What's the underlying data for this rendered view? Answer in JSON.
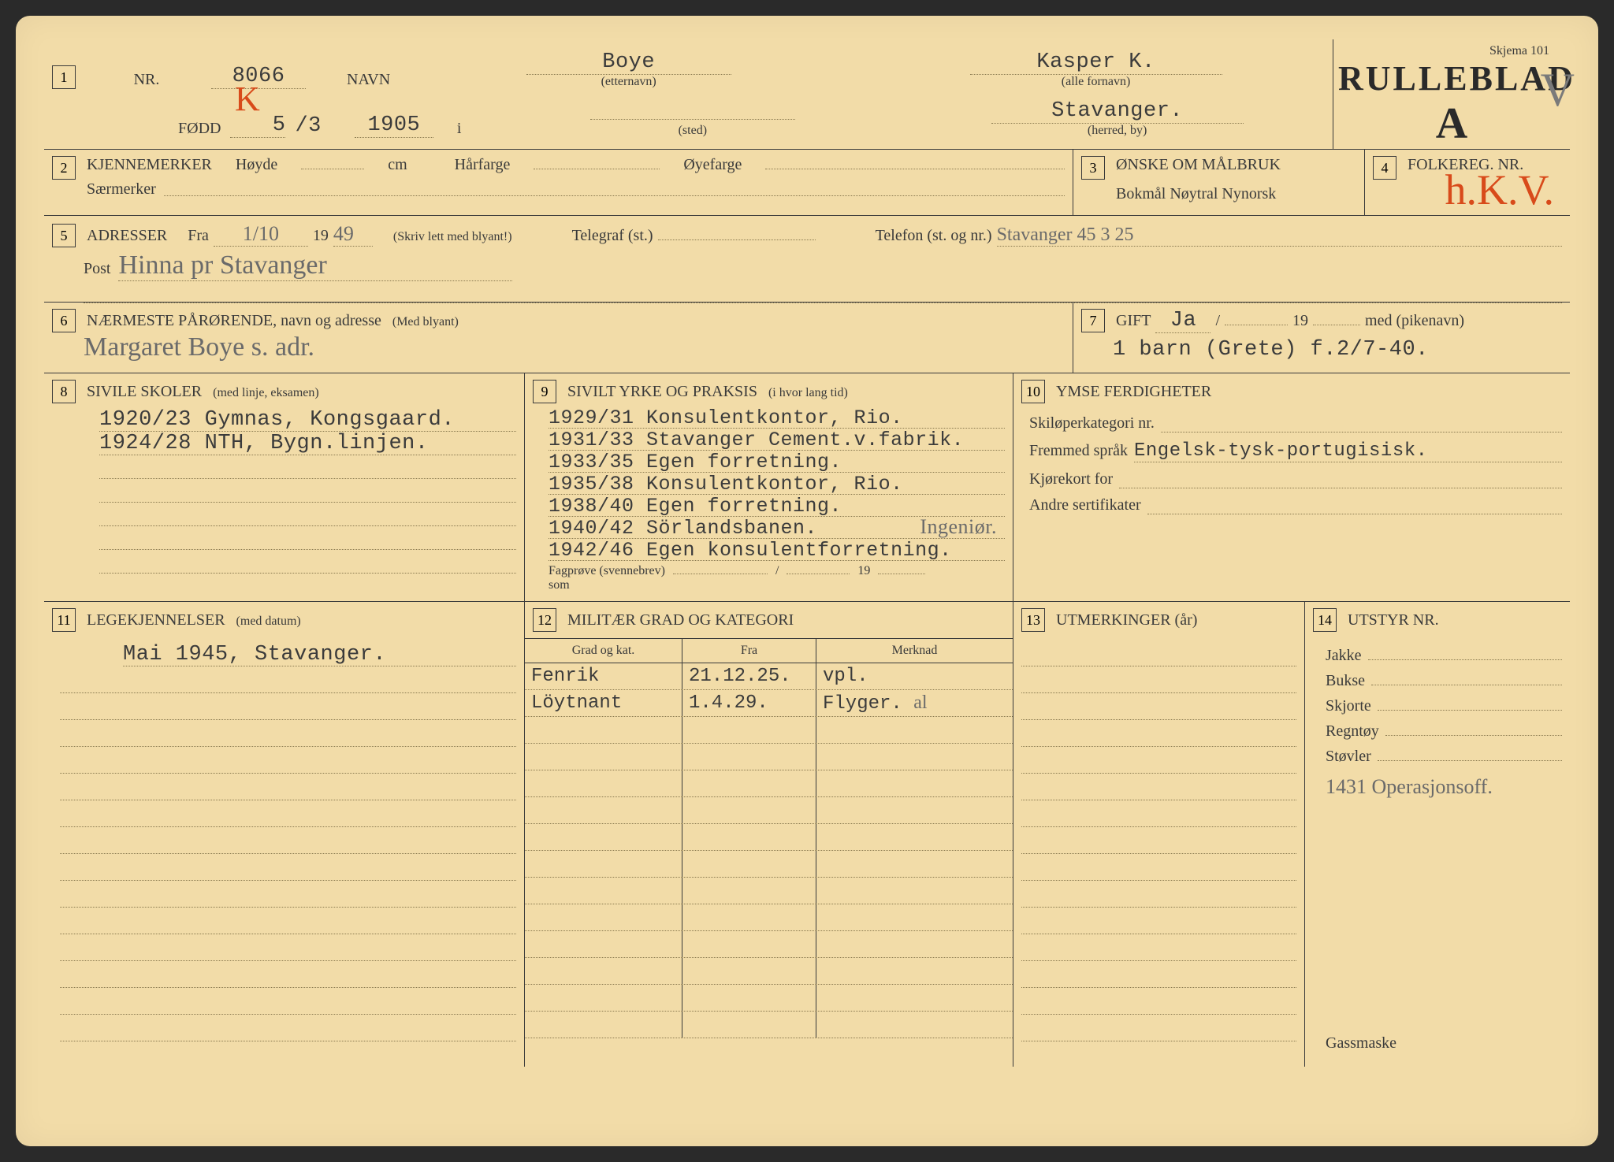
{
  "form": {
    "skjema": "Skjema 101",
    "title": "RULLEBLAD",
    "title_letter": "A",
    "checkmark": "V"
  },
  "colors": {
    "paper": "#f2dca8",
    "ink": "#3a3a3a",
    "typed": "#3b3b3b",
    "handwritten_pencil": "#6a6a6a",
    "handwritten_red": "#d84a1a",
    "dotted_line": "#8a7a50"
  },
  "box1": {
    "nr_label": "NR.",
    "nr_value": "8066",
    "nr_letter": "K",
    "navn_label": "NAVN",
    "etternavn": "Boye",
    "etternavn_sub": "(etternavn)",
    "fornavn": "Kasper K.",
    "fornavn_sub": "(alle fornavn)",
    "fodd_label": "FØDD",
    "fodd_day": "5",
    "fodd_month": "/3",
    "fodd_year": "1905",
    "i_label": "i",
    "sted_sub": "(sted)",
    "herred": "Stavanger.",
    "herred_sub": "(herred, by)"
  },
  "box2": {
    "kjennemerker": "KJENNEMERKER",
    "hoyde": "Høyde",
    "cm": "cm",
    "harfarge": "Hårfarge",
    "oyefarge": "Øyefarge",
    "saermerker": "Særmerker"
  },
  "box3": {
    "title": "ØNSKE OM MÅLBRUK",
    "options": "Bokmål   Nøytral   Nynorsk"
  },
  "box4": {
    "title": "FOLKEREG. NR.",
    "value": "h.K.V."
  },
  "box5": {
    "adresser": "ADRESSER",
    "fra": "Fra",
    "fra_date": "1/10",
    "fra_year_prefix": "19",
    "fra_year_suffix": "49",
    "skriv": "(Skriv lett med blyant!)",
    "telegraf": "Telegraf (st.)",
    "telefon": "Telefon (st. og nr.)",
    "telefon_val": "Stavanger 45 3 25",
    "post": "Post",
    "post_val": "Hinna pr Stavanger"
  },
  "box6": {
    "title": "NÆRMESTE PÅRØRENDE, navn og adresse",
    "sub": "(Med blyant)",
    "value": "Margaret Boye s. adr."
  },
  "box7": {
    "gift": "GIFT",
    "gift_val": "Ja",
    "slash": "/",
    "year_prefix": "19",
    "med": "med (pikenavn)",
    "barn": "1 barn (Grete) f.2/7-40."
  },
  "box8": {
    "title": "SIVILE SKOLER",
    "sub": "(med linje, eksamen)",
    "lines": [
      "1920/23 Gymnas, Kongsgaard.",
      "1924/28 NTH, Bygn.linjen."
    ]
  },
  "box9": {
    "title": "SIVILT YRKE OG PRAKSIS",
    "sub": "(i hvor lang tid)",
    "lines": [
      "1929/31 Konsulentkontor, Rio.",
      "1931/33 Stavanger Cement.v.fabrik.",
      "1933/35 Egen forretning.",
      "1935/38 Konsulentkontor, Rio.",
      "1938/40 Egen forretning.",
      "1940/42 Sörlandsbanen.",
      "1942/46 Egen konsulentforretning."
    ],
    "hand_note": "Ingeniør.",
    "fagprove": "Fagprøve (svennebrev)",
    "fagprove_slash": "/",
    "fagprove_year": "19",
    "som": "som"
  },
  "box10": {
    "title": "YMSE FERDIGHETER",
    "skiloper": "Skiløperkategori nr.",
    "fremmed": "Fremmed språk",
    "fremmed_val": "Engelsk-tysk-portugisisk.",
    "kjorekort": "Kjørekort for",
    "andre": "Andre sertifikater"
  },
  "box11": {
    "title": "LEGEKJENNELSER",
    "sub": "(med datum)",
    "line1": "Mai 1945, Stavanger."
  },
  "box12": {
    "title": "MILITÆR GRAD OG KATEGORI",
    "col1": "Grad og kat.",
    "col2": "Fra",
    "col3": "Merknad",
    "rows": [
      {
        "grad": "Fenrik",
        "fra": "21.12.25.",
        "merk": "vpl."
      },
      {
        "grad": "Löytnant",
        "fra": "1.4.29.",
        "merk": "Flyger. al"
      }
    ]
  },
  "box13": {
    "title": "UTMERKINGER (år)"
  },
  "box14": {
    "title": "UTSTYR NR.",
    "items": [
      "Jakke",
      "Bukse",
      "Skjorte",
      "Regntøy",
      "Støvler"
    ],
    "hand_note": "1431 Operasjonsoff.",
    "gassmaske": "Gassmaske"
  }
}
